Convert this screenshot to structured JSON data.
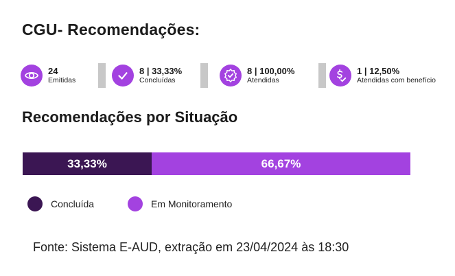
{
  "title": "CGU- Recomendações:",
  "kpis": [
    {
      "value": "24",
      "label": "Emitidas",
      "icon": "eye-icon"
    },
    {
      "value": "8 | 33,33%",
      "label": "Concluídas",
      "icon": "check-circle-icon"
    },
    {
      "value": "8 | 100,00%",
      "label": "Atendidas",
      "icon": "badge-check-icon"
    },
    {
      "value": "1 | 12,50%",
      "label": "Atendidas com benefício",
      "icon": "dollar-check-icon"
    }
  ],
  "subtitle": "Recomendações por Situação",
  "chart_data": {
    "type": "bar",
    "orientation": "horizontal",
    "stacked": true,
    "categories": [
      "Recomendações por Situação"
    ],
    "series": [
      {
        "name": "Concluída",
        "values": [
          33.33
        ],
        "label": "33,33%",
        "color": "#3b1653"
      },
      {
        "name": "Em Monitoramento",
        "values": [
          66.67
        ],
        "label": "66,67%",
        "color": "#a342e0"
      }
    ],
    "xlim": [
      0,
      100
    ],
    "legend": "bottom-left",
    "grid": false
  },
  "source": "Fonte: Sistema E-AUD, extração em 23/04/2024 às 18:30",
  "colors": {
    "accent": "#a342e0",
    "dark": "#3b1653",
    "separator": "#c8c8c8"
  }
}
